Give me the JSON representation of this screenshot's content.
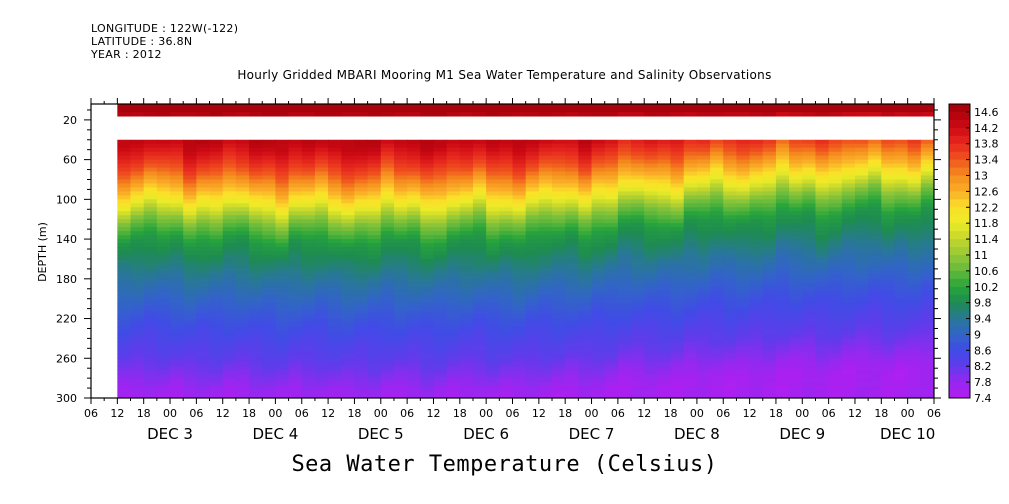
{
  "header": {
    "longitude": "LONGITUDE : 122W(-122)",
    "latitude": "LATITUDE : 36.8N",
    "year": "YEAR : 2012"
  },
  "chart_data": {
    "type": "heatmap",
    "title": "Hourly Gridded MBARI Mooring M1 Sea Water Temperature and Salinity Observations",
    "bottom_title": "Sea Water Temperature (Celsius)",
    "ylabel": "DEPTH (m)",
    "ylim": [
      300,
      4
    ],
    "y_ticks": [
      20,
      60,
      100,
      140,
      180,
      220,
      260,
      300
    ],
    "x_range_hours": [
      "DEC 2 06",
      "DEC 10 06"
    ],
    "x_hour_ticks": [
      "06",
      "12",
      "18",
      "00",
      "06",
      "12",
      "18",
      "00",
      "06",
      "12",
      "18",
      "00",
      "06",
      "12",
      "18",
      "00",
      "06",
      "12",
      "18",
      "00",
      "06",
      "12",
      "18",
      "00",
      "06",
      "12",
      "18",
      "00",
      "06",
      "12",
      "18",
      "00",
      "06"
    ],
    "x_day_labels": [
      "DEC 3",
      "DEC 4",
      "DEC 5",
      "DEC 6",
      "DEC 7",
      "DEC 8",
      "DEC 9",
      "DEC 10"
    ],
    "data_start": "DEC 2 12",
    "missing_depth_band_m": [
      14,
      40
    ],
    "colorbar": {
      "min": 7.4,
      "max": 14.8,
      "step": 0.2,
      "labels": [
        "14.6",
        "14.2",
        "13.8",
        "13.4",
        "13",
        "12.6",
        "12.2",
        "11.8",
        "11.4",
        "11",
        "10.6",
        "10.2",
        "9.8",
        "9.4",
        "9",
        "8.6",
        "8.2",
        "7.8",
        "7.4"
      ]
    },
    "temperature_profile": [
      {
        "depth": 4,
        "temp": 14.6
      },
      {
        "depth": 40,
        "temp": 14.4
      },
      {
        "depth": 70,
        "temp": 13.4
      },
      {
        "depth": 100,
        "temp": 12.0
      },
      {
        "depth": 120,
        "temp": 10.8
      },
      {
        "depth": 140,
        "temp": 10.0
      },
      {
        "depth": 180,
        "temp": 9.3
      },
      {
        "depth": 220,
        "temp": 8.7
      },
      {
        "depth": 260,
        "temp": 8.2
      },
      {
        "depth": 300,
        "temp": 7.6
      }
    ],
    "thermocline_shift_m": [
      {
        "time": "DEC 2 12",
        "shift": 0
      },
      {
        "time": "DEC 4 12",
        "shift": 5
      },
      {
        "time": "DEC 6 12",
        "shift": 0
      },
      {
        "time": "DEC 7 06",
        "shift": -10
      },
      {
        "time": "DEC 8 12",
        "shift": -22
      },
      {
        "time": "DEC 10 06",
        "shift": -30
      }
    ]
  }
}
